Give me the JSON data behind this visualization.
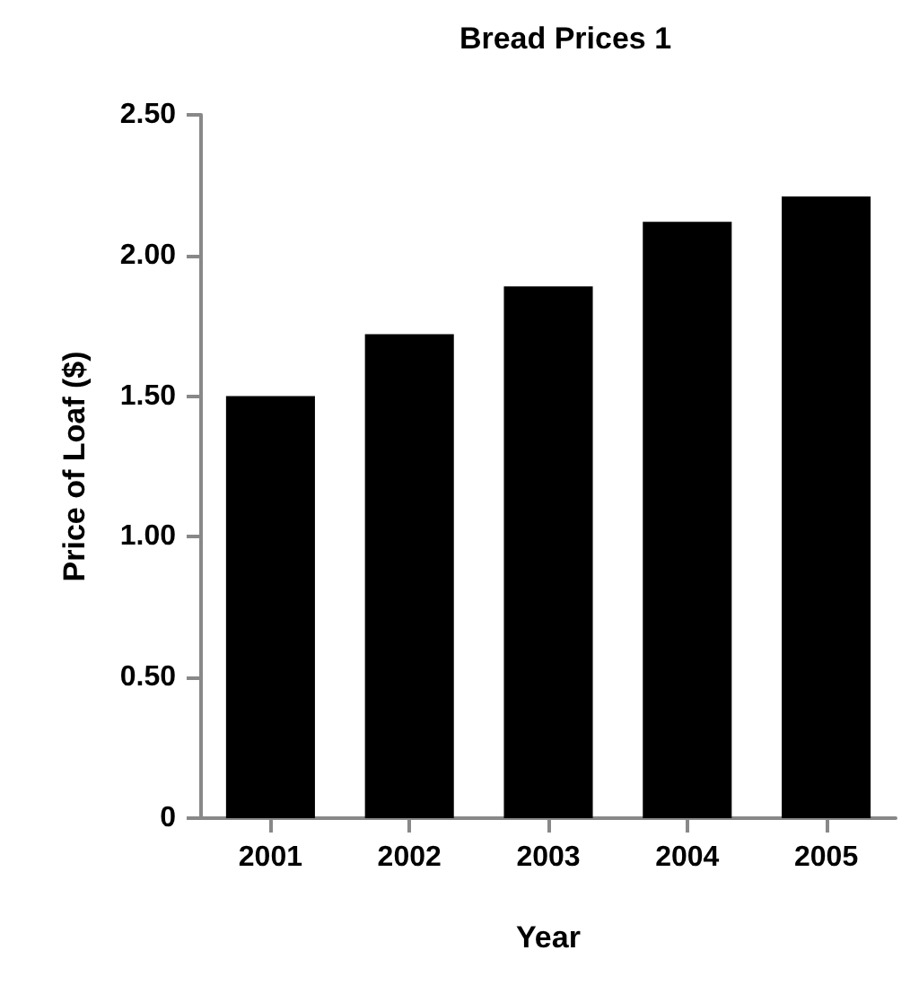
{
  "chart_data": {
    "type": "bar",
    "title": "Bread Prices 1",
    "xlabel": "Year",
    "ylabel": "Price of Loaf ($)",
    "categories": [
      "2001",
      "2002",
      "2003",
      "2004",
      "2005"
    ],
    "values": [
      1.5,
      1.72,
      1.89,
      2.12,
      2.21
    ],
    "color": "#000000",
    "ylim": [
      0,
      2.5
    ],
    "yticks": [
      0,
      {
        "value": 0.5,
        "label": "0.50"
      },
      {
        "value": 1,
        "label": "1.00"
      },
      {
        "value": 1.5,
        "label": "1.50"
      },
      {
        "value": 2,
        "label": "2.00"
      },
      {
        "value": 2.5,
        "label": "2.50"
      }
    ],
    "grid": false
  }
}
